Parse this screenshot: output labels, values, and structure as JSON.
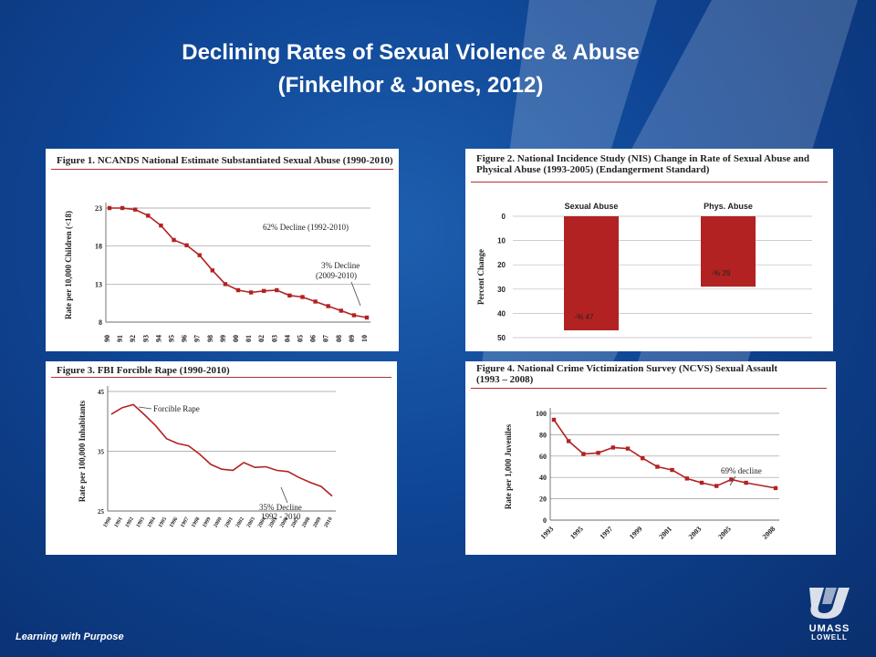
{
  "slide": {
    "title_line1": "Declining Rates of Sexual Violence & Abuse",
    "title_line2": "(Finkelhor & Jones, 2012)",
    "footer": "Learning with Purpose",
    "logo_line1": "UMASS",
    "logo_line2": "LOWELL"
  },
  "chart_data": [
    {
      "type": "line",
      "title": "Figure 1. NCANDS National Estimate Substantiated Sexual Abuse (1990-2010)",
      "ylabel": "Rate per 10,000 Children (<18)",
      "x": [
        "90",
        "91",
        "92",
        "93",
        "94",
        "95",
        "96",
        "97",
        "98",
        "99",
        "00",
        "01",
        "02",
        "03",
        "04",
        "05",
        "06",
        "07",
        "08",
        "09",
        "10"
      ],
      "y": [
        23,
        23,
        22.8,
        22,
        20.7,
        18.8,
        18.1,
        16.8,
        14.8,
        13,
        12.2,
        11.9,
        12.1,
        12.2,
        11.5,
        11.3,
        10.7,
        10.1,
        9.5,
        8.9,
        8.6
      ],
      "ylim": [
        8,
        23
      ],
      "yticks": [
        "23",
        "18",
        "13",
        "8"
      ],
      "grid": true,
      "annotations": [
        "62% Decline (1992-2010)",
        "3% Decline",
        "(2009-2010)"
      ],
      "color": "#b22222"
    },
    {
      "type": "bar",
      "title": "Figure 2. National Incidence Study (NIS) Change in Rate of Sexual Abuse and",
      "title2": "Physical Abuse (1993-2005) (Endangerment Standard)",
      "categories": [
        "Sexual Abuse",
        "Phys. Abuse"
      ],
      "values": [
        47,
        29
      ],
      "data_labels": [
        "-% 47",
        "-% 29"
      ],
      "ylabel": "Percent Change",
      "ylim": [
        0,
        50
      ],
      "yticks": [
        "0",
        "10",
        "20",
        "30",
        "40",
        "50"
      ],
      "grid": true,
      "color": "#b22222"
    },
    {
      "type": "line",
      "title": "Figure 3. FBI Forcible  Rape (1990-2010)",
      "ylabel": "Rate per 100,000 Inhabitants",
      "x": [
        "1990",
        "1991",
        "1992",
        "1993",
        "1994",
        "1995",
        "1996",
        "1997",
        "1998",
        "1999",
        "2000",
        "2001",
        "2002",
        "2003",
        "2004",
        "2005",
        "2006",
        "2007",
        "2008",
        "2009",
        "2010"
      ],
      "y": [
        41.2,
        42.3,
        42.8,
        41.1,
        39.3,
        37.1,
        36.3,
        35.9,
        34.5,
        32.8,
        32.0,
        31.8,
        33.1,
        32.3,
        32.4,
        31.8,
        31.6,
        30.6,
        29.8,
        29.1,
        27.5
      ],
      "ylim": [
        25,
        45
      ],
      "yticks": [
        "45",
        "35",
        "25"
      ],
      "grid": true,
      "annotations": [
        "Forcible Rape",
        "35% Decline",
        "1992 - 2010"
      ],
      "color": "#b22222"
    },
    {
      "type": "line",
      "title": "Figure 4. National Crime Victimization Survey (NCVS) Sexual Assault",
      "title2": "(1993 – 2008)",
      "ylabel": "Rate per 1,000 Juveniles",
      "x": [
        1993,
        1994,
        1995,
        1996,
        1997,
        1998,
        1999,
        2000,
        2001,
        2002,
        2003,
        2004,
        2005,
        2006,
        2008
      ],
      "y": [
        94,
        74,
        62,
        63,
        68,
        67,
        58,
        50,
        47,
        39,
        35,
        32,
        38,
        35,
        30
      ],
      "xtick_labels": [
        "1993",
        "1995",
        "1997",
        "1999",
        "2001",
        "2003",
        "2005",
        "2008"
      ],
      "ylim": [
        0,
        100
      ],
      "yticks": [
        "100",
        "80",
        "60",
        "40",
        "20",
        "0"
      ],
      "grid": true,
      "annotations": [
        "69% decline"
      ],
      "color": "#b22222"
    }
  ]
}
